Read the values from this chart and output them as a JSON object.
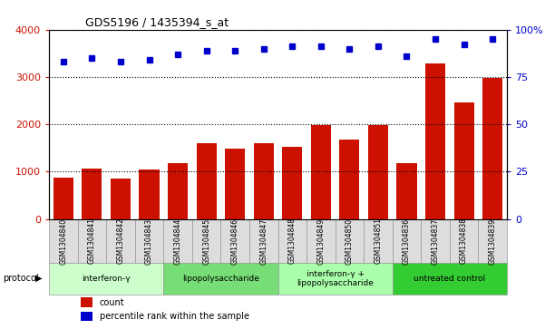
{
  "title": "GDS5196 / 1435394_s_at",
  "samples": [
    "GSM1304840",
    "GSM1304841",
    "GSM1304842",
    "GSM1304843",
    "GSM1304844",
    "GSM1304845",
    "GSM1304846",
    "GSM1304847",
    "GSM1304848",
    "GSM1304849",
    "GSM1304850",
    "GSM1304851",
    "GSM1304836",
    "GSM1304837",
    "GSM1304838",
    "GSM1304839"
  ],
  "counts": [
    880,
    1070,
    850,
    1050,
    1190,
    1610,
    1490,
    1610,
    1530,
    1980,
    1680,
    1980,
    1190,
    3280,
    2460,
    2980
  ],
  "percentile_ranks": [
    83,
    85,
    83,
    84,
    87,
    89,
    89,
    90,
    91,
    91,
    90,
    91,
    86,
    95,
    92,
    95
  ],
  "bar_color": "#cc1100",
  "dot_color": "#0000cc",
  "ylim_left": [
    0,
    4000
  ],
  "ylim_right": [
    0,
    100
  ],
  "yticks_left": [
    0,
    1000,
    2000,
    3000,
    4000
  ],
  "yticks_right": [
    0,
    25,
    50,
    75,
    100
  ],
  "ytick_labels_right": [
    "0",
    "25",
    "50",
    "75",
    "100%"
  ],
  "groups": [
    {
      "label": "interferon-γ",
      "start": 0,
      "end": 4,
      "color": "#ccffcc"
    },
    {
      "label": "lipopolysaccharide",
      "start": 4,
      "end": 8,
      "color": "#77dd77"
    },
    {
      "label": "interferon-γ +\nlipopolysaccharide",
      "start": 8,
      "end": 12,
      "color": "#aaffaa"
    },
    {
      "label": "untreated control",
      "start": 12,
      "end": 16,
      "color": "#33cc33"
    }
  ],
  "protocol_label": "protocol",
  "legend_count_label": "count",
  "legend_percentile_label": "percentile rank within the sample",
  "background_color": "#ffffff",
  "plot_bg_color": "#ffffff",
  "grid_color": "#000000",
  "tick_label_color_left": "#cc1100",
  "tick_label_color_right": "#0000cc",
  "xlabel_box_color": "#dddddd",
  "xlabel_box_edge": "#999999"
}
